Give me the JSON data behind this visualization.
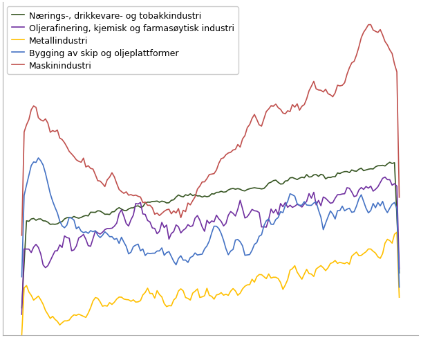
{
  "series": [
    {
      "label": "Nærings-, drikkevare- og tobakkindustri",
      "color": "#375623",
      "linewidth": 1.2
    },
    {
      "label": "Oljerafinering, kjemisk og farmasøytisk industri",
      "color": "#7030a0",
      "linewidth": 1.2
    },
    {
      "label": "Metallindustri",
      "color": "#ffc000",
      "linewidth": 1.2
    },
    {
      "label": "Bygging av skip og oljeplattformer",
      "color": "#4472c4",
      "linewidth": 1.2
    },
    {
      "label": "Maskinindustri",
      "color": "#c0504d",
      "linewidth": 1.2
    }
  ],
  "legend_loc": "upper left",
  "legend_fontsize": 9,
  "grid_color": "#d0d0d0",
  "background_color": "#ffffff",
  "plot_background": "#ffffff",
  "n_points": 160,
  "ylim": [
    55,
    235
  ],
  "tick_fontsize": 9
}
